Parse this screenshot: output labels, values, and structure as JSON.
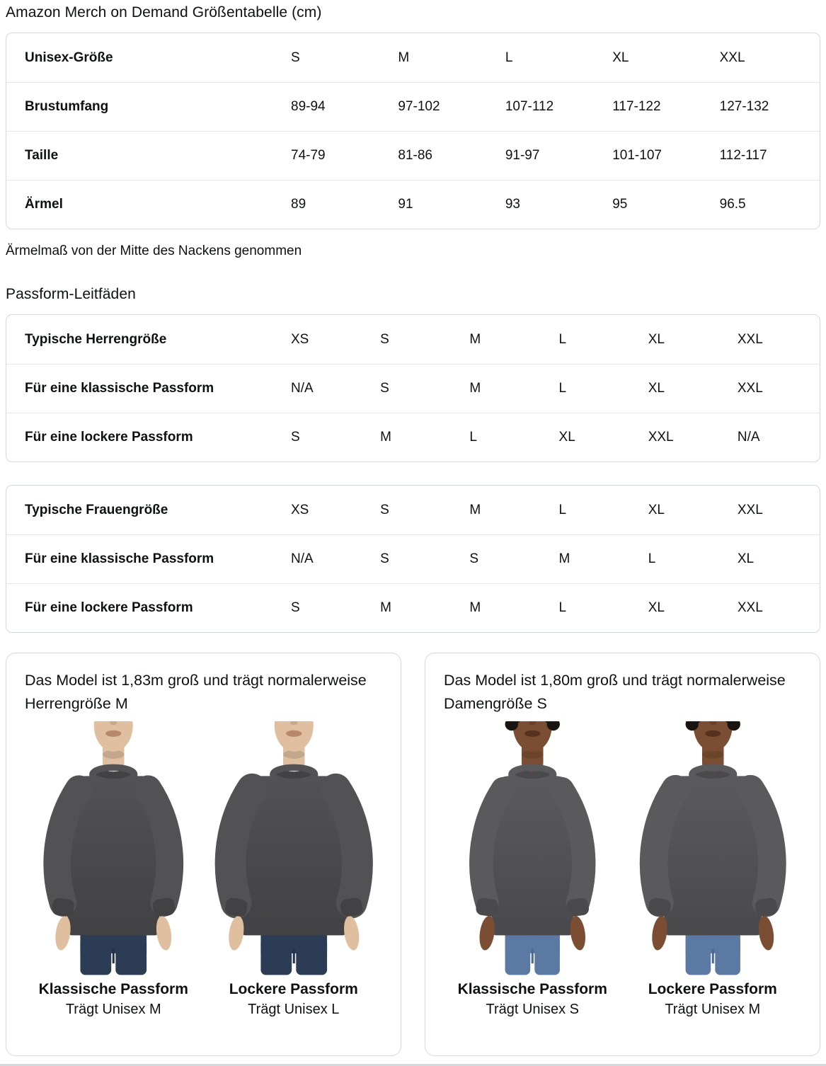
{
  "colors": {
    "text": "#0f1111",
    "background": "#ffffff",
    "card_border": "#d5d9d9",
    "row_divider": "#e7e7e7",
    "bottom_divider": "#d5d9d9"
  },
  "header": {
    "title": "Amazon Merch on Demand Größentabelle (cm)"
  },
  "size_table": {
    "rows": [
      {
        "label": "Unisex-Größe",
        "values": [
          "S",
          "M",
          "L",
          "XL",
          "XXL"
        ]
      },
      {
        "label": "Brustumfang",
        "values": [
          "89-94",
          "97-102",
          "107-112",
          "117-122",
          "127-132"
        ]
      },
      {
        "label": "Taille",
        "values": [
          "74-79",
          "81-86",
          "91-97",
          "101-107",
          "112-117"
        ]
      },
      {
        "label": "Ärmel",
        "values": [
          "89",
          "91",
          "93",
          "95",
          "96.5"
        ]
      }
    ]
  },
  "sleeve_note": "Ärmelmaß von der Mitte des Nackens genommen",
  "fit_section": {
    "heading": "Passform-Leitfäden"
  },
  "fit_tables": [
    {
      "rows": [
        {
          "label": "Typische Herrengröße",
          "values": [
            "XS",
            "S",
            "M",
            "L",
            "XL",
            "XXL"
          ]
        },
        {
          "label": "Für eine klassische Passform",
          "values": [
            "N/A",
            "S",
            "M",
            "L",
            "XL",
            "XXL"
          ]
        },
        {
          "label": "Für eine lockere Passform",
          "values": [
            "S",
            "M",
            "L",
            "XL",
            "XXL",
            "N/A"
          ]
        }
      ]
    },
    {
      "rows": [
        {
          "label": "Typische Frauengröße",
          "values": [
            "XS",
            "S",
            "M",
            "L",
            "XL",
            "XXL"
          ]
        },
        {
          "label": "Für eine klassische Passform",
          "values": [
            "N/A",
            "S",
            "S",
            "M",
            "L",
            "XL"
          ]
        },
        {
          "label": "Für eine lockere Passform",
          "values": [
            "S",
            "M",
            "M",
            "L",
            "XL",
            "XXL"
          ]
        }
      ]
    }
  ],
  "model_cards": [
    {
      "caption": "Das Model ist 1,83m groß und trägt normalerweise Herrengröße M",
      "model": {
        "gender": "man",
        "skin": "#dfbfa0",
        "lips": "#b9886c",
        "hair": null,
        "sweatshirt": "#525255",
        "sweatshirt_dark": "#424245",
        "jeans": "#2c3c55",
        "jeans_seam": "#223049"
      },
      "figures": [
        {
          "fit": "classic",
          "fit_label": "Klassische Passform",
          "size_label": "Trägt Unisex M"
        },
        {
          "fit": "loose",
          "fit_label": "Lockere Passform",
          "size_label": "Trägt Unisex L"
        }
      ]
    },
    {
      "caption": "Das Model ist 1,80m groß und trägt normalerweise Damengröße S",
      "model": {
        "gender": "woman",
        "skin": "#7b4e33",
        "lips": "#59301f",
        "hair": "#1a1410",
        "sweatshirt": "#5a5a5d",
        "sweatshirt_dark": "#4a4a4d",
        "jeans": "#5b79a3",
        "jeans_seam": "#4a6890"
      },
      "figures": [
        {
          "fit": "classic",
          "fit_label": "Klassische Passform",
          "size_label": "Trägt Unisex S"
        },
        {
          "fit": "loose",
          "fit_label": "Lockere Passform",
          "size_label": "Trägt Unisex M"
        }
      ]
    }
  ]
}
